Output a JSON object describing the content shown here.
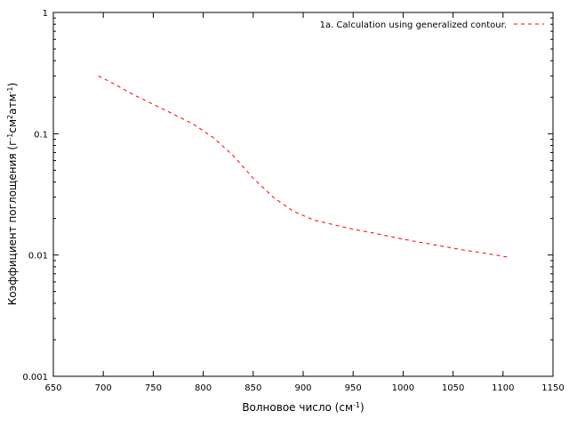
{
  "chart_data": {
    "type": "line",
    "scale": {
      "x": "linear",
      "y": "log"
    },
    "xlim": [
      650,
      1150
    ],
    "ylim": [
      0.001,
      1
    ],
    "x_ticks": [
      650,
      700,
      750,
      800,
      850,
      900,
      950,
      1000,
      1050,
      1100,
      1150
    ],
    "x_tick_labels": [
      "650",
      "700",
      "750",
      "800",
      "850",
      "900",
      "950",
      "1000",
      "1050",
      "1100",
      "1150"
    ],
    "y_ticks": [
      0.001,
      0.01,
      0.1,
      1
    ],
    "y_tick_labels": [
      "0.001",
      "0.01",
      "0.1",
      "1"
    ],
    "xlabel": {
      "base": "Волновое число (см",
      "sup": "-1",
      "tail": ")"
    },
    "ylabel": {
      "p1": "Коэффициент поглощения (г",
      "s1": "-1",
      "p2": "см",
      "s2": "2",
      "p3": "атм",
      "s3": "-1",
      "p4": ")"
    },
    "grid": false,
    "legend": {
      "position": "top-right"
    },
    "series": [
      {
        "name": "1a. Calculation using generalized contour.",
        "color": "#ff0000",
        "style": "dashed",
        "x": [
          695,
          710,
          730,
          750,
          770,
          790,
          810,
          830,
          850,
          870,
          890,
          910,
          930,
          950,
          970,
          1000,
          1030,
          1060,
          1080,
          1105
        ],
        "y": [
          0.3,
          0.26,
          0.21,
          0.175,
          0.145,
          0.12,
          0.093,
          0.066,
          0.043,
          0.03,
          0.023,
          0.0195,
          0.0178,
          0.0163,
          0.0152,
          0.0135,
          0.0122,
          0.011,
          0.0104,
          0.0096
        ]
      }
    ]
  }
}
